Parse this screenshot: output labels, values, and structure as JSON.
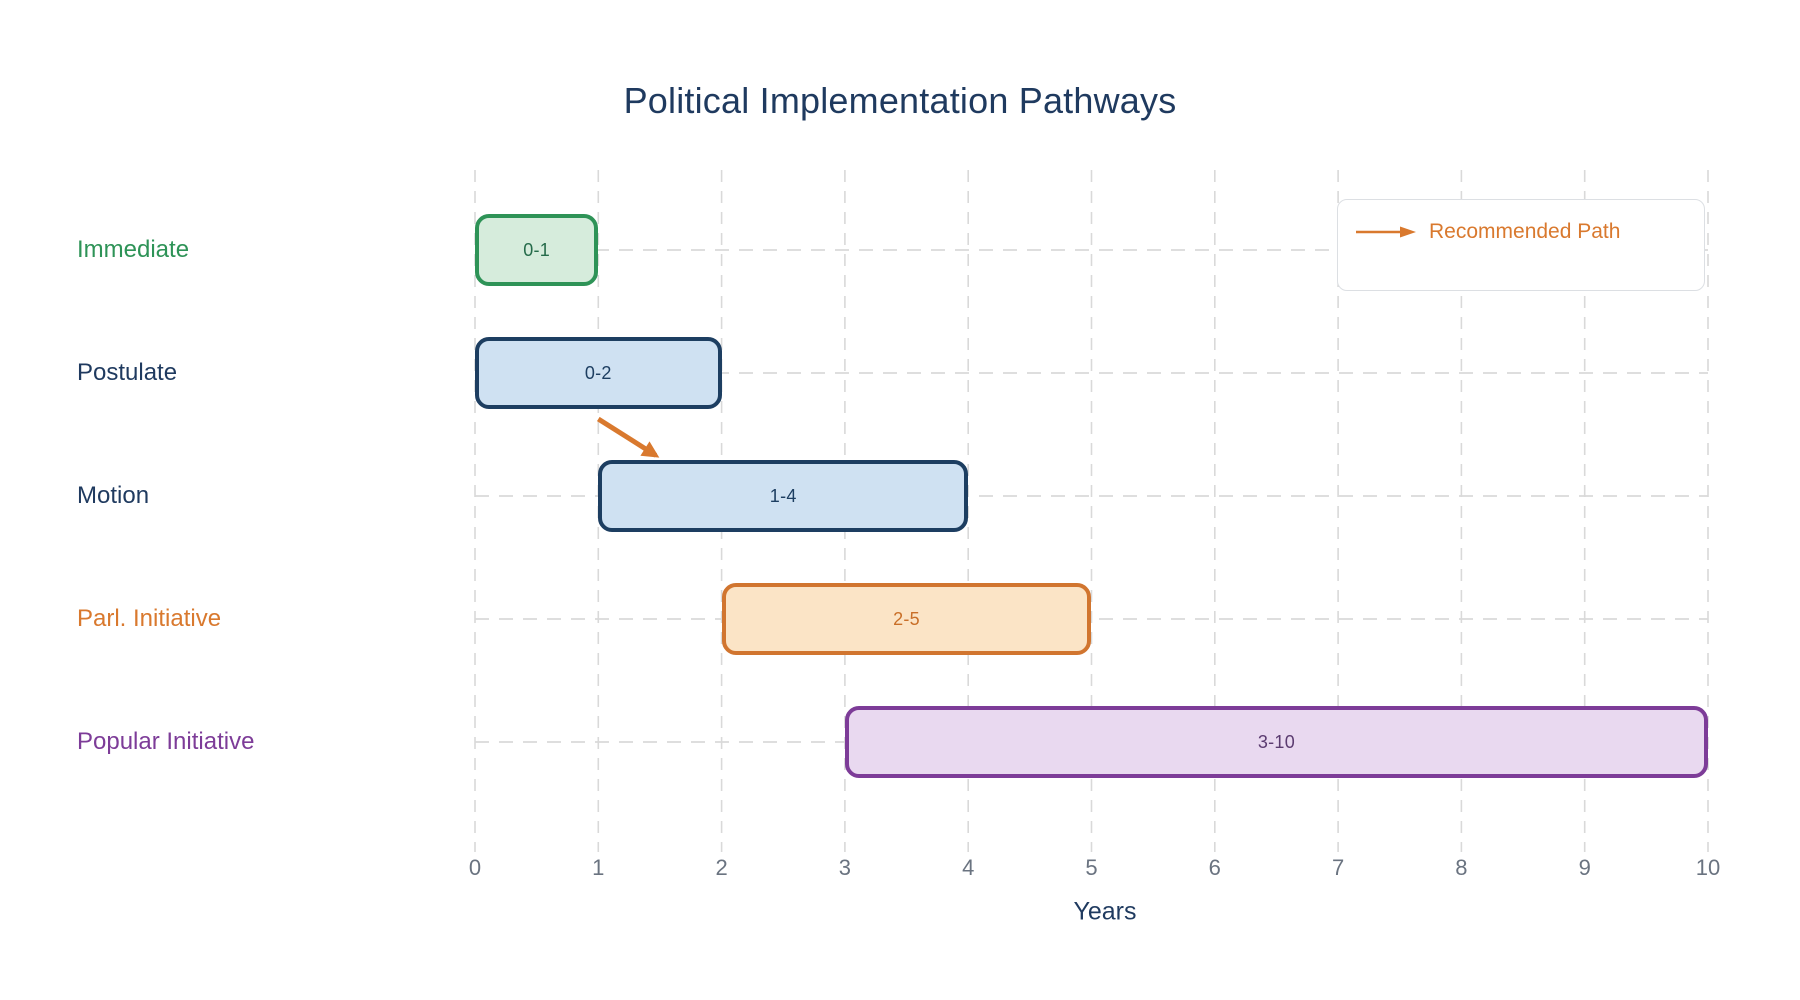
{
  "title": "Political Implementation Pathways",
  "axis_title": "Years",
  "legend": {
    "label": "Recommended Path"
  },
  "colors": {
    "title": "#1f3a5f",
    "axis_title": "#1f3a5f",
    "tick": "#6a7380",
    "grid": "#d9d9d9",
    "legend_text": "#d9792e",
    "legend_border": "#dcdfe3",
    "annotation_arrow": "#d9792e"
  },
  "chart_data": {
    "type": "bar",
    "subtype": "horizontal-gantt-timeline",
    "title": "Political Implementation Pathways",
    "xlabel": "Years",
    "xlim": [
      0,
      10
    ],
    "xticks": [
      0,
      1,
      2,
      3,
      4,
      5,
      6,
      7,
      8,
      9,
      10
    ],
    "grid": {
      "vertical": "dashed",
      "horizontal": "dashed"
    },
    "legend": {
      "position": "top-right",
      "entries": [
        {
          "symbol": "arrow",
          "label": "Recommended Path",
          "color": "#d9792e"
        }
      ]
    },
    "categories": [
      "Immediate",
      "Postulate",
      "Motion",
      "Parl. Initiative",
      "Popular Initiative"
    ],
    "tasks": [
      {
        "name": "Immediate",
        "start": 0,
        "end": 1,
        "bar_label": "0-1",
        "fill": "#d6ecdc",
        "border": "#2e9357",
        "name_color": "#2e9357",
        "bar_label_color": "#256b4a"
      },
      {
        "name": "Postulate",
        "start": 0,
        "end": 2,
        "bar_label": "0-2",
        "fill": "#cfe1f2",
        "border": "#1d3e61",
        "name_color": "#1f3a5f",
        "bar_label_color": "#1d3e61"
      },
      {
        "name": "Motion",
        "start": 1,
        "end": 4,
        "bar_label": "1-4",
        "fill": "#cfe1f2",
        "border": "#1d3e61",
        "name_color": "#1f3a5f",
        "bar_label_color": "#1d3e61"
      },
      {
        "name": "Parl. Initiative",
        "start": 2,
        "end": 5,
        "bar_label": "2-5",
        "fill": "#fbe4c6",
        "border": "#d1752f",
        "name_color": "#d9792e",
        "bar_label_color": "#c96f28"
      },
      {
        "name": "Popular Initiative",
        "start": 3,
        "end": 10,
        "bar_label": "3-10",
        "fill": "#e9d9f0",
        "border": "#7d3c98",
        "name_color": "#7d3c98",
        "bar_label_color": "#5b3b70"
      }
    ],
    "annotation_arrow": {
      "from_task": "Postulate",
      "from_year": 1.0,
      "to_task": "Motion",
      "to_year": 1.5,
      "color": "#d9792e",
      "meaning": "Recommended Path"
    }
  }
}
